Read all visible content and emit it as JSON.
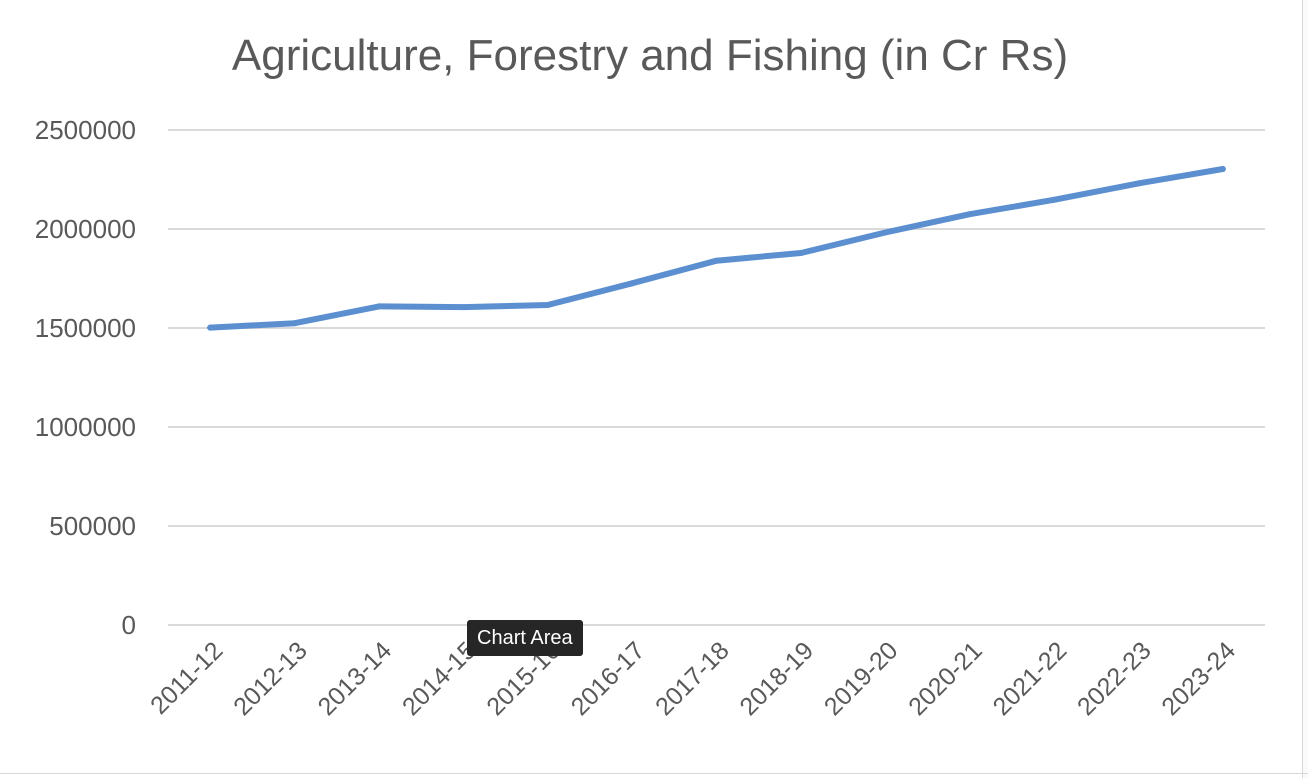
{
  "chart_data": {
    "type": "line",
    "title": "Agriculture, Forestry and Fishing (in Cr Rs)",
    "xlabel": "",
    "ylabel": "",
    "categories": [
      "2011-12",
      "2012-13",
      "2013-14",
      "2014-15",
      "2015-16",
      "2016-17",
      "2017-18",
      "2018-19",
      "2019-20",
      "2020-21",
      "2021-22",
      "2022-23",
      "2023-24"
    ],
    "series": [
      {
        "values": [
          1501947,
          1524288,
          1609198,
          1605715,
          1616146,
          1726004,
          1840023,
          1878598,
          1982303,
          2074855,
          2147385,
          2230221,
          2303060
        ],
        "color": "#5b8fd0"
      }
    ],
    "y_ticks": [
      "0",
      "500000",
      "1000000",
      "1500000",
      "2000000",
      "2500000"
    ],
    "ylim": [
      0,
      2500000
    ],
    "grid": true,
    "legend": "none",
    "colors": {
      "line": "#5b8fd0",
      "grid": "#d9d9d9",
      "text": "#595959",
      "tooltip_bg": "#262626"
    }
  },
  "tooltip": {
    "label": "Chart Area"
  }
}
